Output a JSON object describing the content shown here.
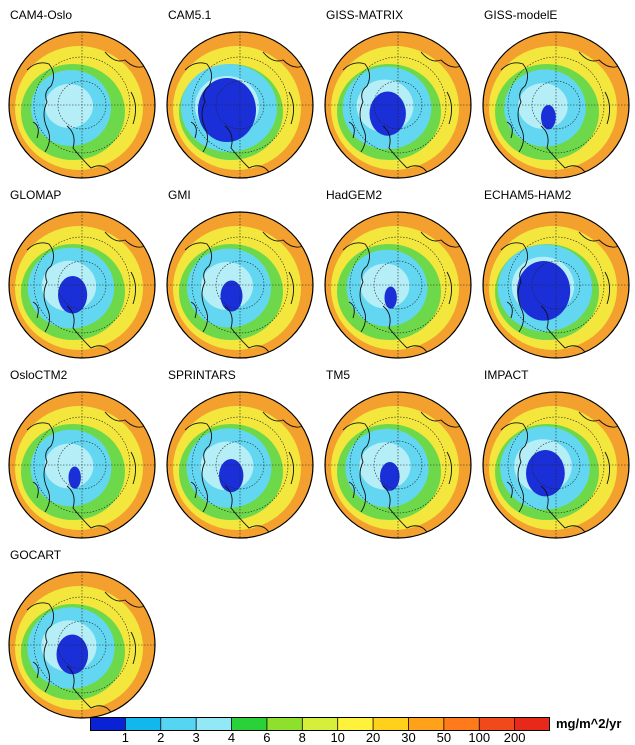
{
  "panels": [
    {
      "title": "CAM4-Oslo",
      "low": 0.0
    },
    {
      "title": "CAM5.1",
      "low": 1.0
    },
    {
      "title": "GISS-MATRIX",
      "low": 0.55
    },
    {
      "title": "GISS-modelE",
      "low": 0.1
    },
    {
      "title": "GLOMAP",
      "low": 0.4
    },
    {
      "title": "GMI",
      "low": 0.25
    },
    {
      "title": "HadGEM2",
      "low": 0.05
    },
    {
      "title": "ECHAM5-HAM2",
      "low": 0.9
    },
    {
      "title": "OsloCTM2",
      "low": 0.05
    },
    {
      "title": "SPRINTARS",
      "low": 0.3
    },
    {
      "title": "TM5",
      "low": 0.2
    },
    {
      "title": "IMPACT",
      "low": 0.6
    },
    {
      "title": "GOCART",
      "low": 0.45
    }
  ],
  "colorbar": {
    "units": "mg/m^2/yr",
    "tick_labels": [
      "1",
      "2",
      "3",
      "4",
      "6",
      "8",
      "10",
      "20",
      "30",
      "50",
      "100",
      "200"
    ],
    "colors": [
      "#0a22d6",
      "#10b8ee",
      "#56d5f2",
      "#92e9f5",
      "#2ad23a",
      "#8ee02c",
      "#d6ef3a",
      "#fff23a",
      "#ffd11a",
      "#ffa21a",
      "#ff7a1a",
      "#f04a1a",
      "#e8281a"
    ]
  },
  "map_colors": {
    "ocean_far": "#f3a02e",
    "band_yellow": "#f3e63d",
    "band_green": "#6dd94a",
    "band_cyan": "#63d7f1",
    "band_light": "#b6eef7",
    "band_blue": "#1a2fd8"
  }
}
